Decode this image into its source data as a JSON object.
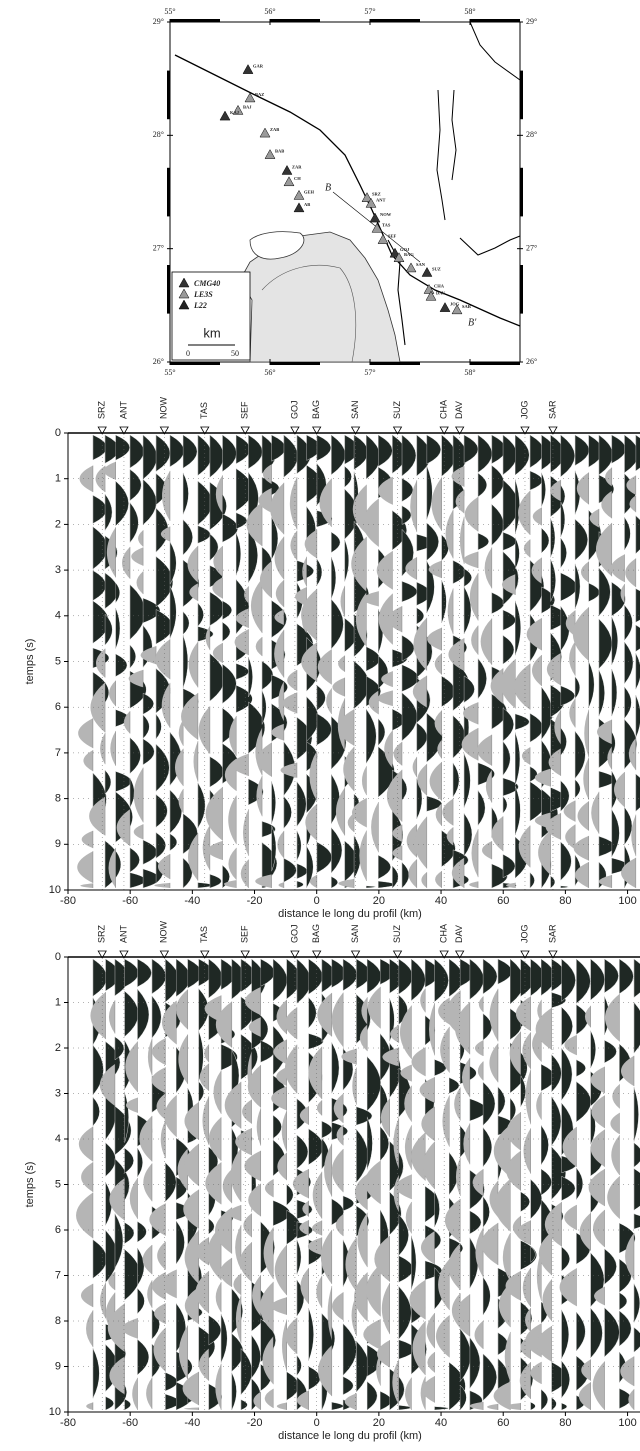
{
  "map": {
    "lon_ticks": [
      {
        "value": 55,
        "label": "55°"
      },
      {
        "value": 56,
        "label": "56°"
      },
      {
        "value": 57,
        "label": "57°"
      },
      {
        "value": 58,
        "label": "58°"
      }
    ],
    "lat_ticks": [
      {
        "value": 29,
        "label": "29°"
      },
      {
        "value": 28,
        "label": "28°"
      },
      {
        "value": 27,
        "label": "27°"
      },
      {
        "value": 26,
        "label": "26°"
      }
    ],
    "xlim": [
      55,
      58.5
    ],
    "ylim": [
      26,
      29
    ],
    "stations": [
      {
        "name": "GAR",
        "lon": 55.78,
        "lat": 28.58
      },
      {
        "name": "BAZ",
        "lon": 55.8,
        "lat": 28.33
      },
      {
        "name": "BAJ",
        "lon": 55.68,
        "lat": 28.22
      },
      {
        "name": "KAJ",
        "lon": 55.55,
        "lat": 28.17
      },
      {
        "name": "ZAB",
        "lon": 55.95,
        "lat": 28.02
      },
      {
        "name": "BAB",
        "lon": 56.0,
        "lat": 27.83
      },
      {
        "name": "ZAR",
        "lon": 56.17,
        "lat": 27.69
      },
      {
        "name": "CH",
        "lon": 56.19,
        "lat": 27.59
      },
      {
        "name": "GEH",
        "lon": 56.29,
        "lat": 27.47
      },
      {
        "name": "AB",
        "lon": 56.29,
        "lat": 27.36
      },
      {
        "name": "SRZ",
        "lon": 56.97,
        "lat": 27.45
      },
      {
        "name": "ANT",
        "lon": 57.01,
        "lat": 27.4
      },
      {
        "name": "NOW",
        "lon": 57.05,
        "lat": 27.27
      },
      {
        "name": "TAS",
        "lon": 57.07,
        "lat": 27.18
      },
      {
        "name": "SEF",
        "lon": 57.13,
        "lat": 27.08
      },
      {
        "name": "GOJ",
        "lon": 57.25,
        "lat": 26.96
      },
      {
        "name": "BAG",
        "lon": 57.29,
        "lat": 26.92
      },
      {
        "name": "SAN",
        "lon": 57.41,
        "lat": 26.83
      },
      {
        "name": "SUZ",
        "lon": 57.57,
        "lat": 26.79
      },
      {
        "name": "CHA",
        "lon": 57.59,
        "lat": 26.64
      },
      {
        "name": "DAV",
        "lon": 57.61,
        "lat": 26.58
      },
      {
        "name": "JOG",
        "lon": 57.75,
        "lat": 26.48
      },
      {
        "name": "SAR",
        "lon": 57.87,
        "lat": 26.46
      }
    ],
    "legend": [
      {
        "name": "CMG40",
        "color": "#333333"
      },
      {
        "name": "LE3S",
        "color": "#9a9a9a"
      },
      {
        "name": "L22",
        "color": "#222222"
      }
    ],
    "scale_unit": "km",
    "scale_ticks": [
      "0",
      "50"
    ],
    "profile_start": "B",
    "profile_end": "B'"
  },
  "sections": [
    {
      "xlabel": "distance le long du profil (km)",
      "ylabel": "temps (s)",
      "xlim": [
        -80,
        104
      ],
      "ylim": [
        0,
        10
      ],
      "xticks": [
        -80,
        -60,
        -40,
        -20,
        0,
        20,
        40,
        60,
        80,
        100
      ],
      "yticks": [
        0,
        1,
        2,
        3,
        4,
        5,
        6,
        7,
        8,
        9,
        10
      ],
      "stations": [
        {
          "name": "SRZ",
          "x": -69
        },
        {
          "name": "ANT",
          "x": -62
        },
        {
          "name": "NOW",
          "x": -49
        },
        {
          "name": "TAS",
          "x": -36
        },
        {
          "name": "SEF",
          "x": -23
        },
        {
          "name": "GOJ",
          "x": -7
        },
        {
          "name": "BAG",
          "x": 0
        },
        {
          "name": "SAN",
          "x": 12.5
        },
        {
          "name": "SUZ",
          "x": 26
        },
        {
          "name": "CHA",
          "x": 41
        },
        {
          "name": "DAV",
          "x": 46
        },
        {
          "name": "JOG",
          "x": 67
        },
        {
          "name": "SAR",
          "x": 76
        }
      ]
    },
    {
      "xlabel": "distance le long du profil (km)",
      "ylabel": "temps (s)",
      "xlim": [
        -80,
        104
      ],
      "ylim": [
        0,
        10
      ],
      "xticks": [
        -80,
        -60,
        -40,
        -20,
        0,
        20,
        40,
        60,
        80,
        100
      ],
      "yticks": [
        0,
        1,
        2,
        3,
        4,
        5,
        6,
        7,
        8,
        9,
        10
      ],
      "stations": [
        {
          "name": "SRZ",
          "x": -69
        },
        {
          "name": "ANT",
          "x": -62
        },
        {
          "name": "NOW",
          "x": -49
        },
        {
          "name": "TAS",
          "x": -36
        },
        {
          "name": "SEF",
          "x": -23
        },
        {
          "name": "GOJ",
          "x": -7
        },
        {
          "name": "BAG",
          "x": 0
        },
        {
          "name": "SAN",
          "x": 12.5
        },
        {
          "name": "SUZ",
          "x": 26
        },
        {
          "name": "CHA",
          "x": 41
        },
        {
          "name": "DAV",
          "x": 46
        },
        {
          "name": "JOG",
          "x": 67
        },
        {
          "name": "SAR",
          "x": 76
        }
      ]
    }
  ]
}
